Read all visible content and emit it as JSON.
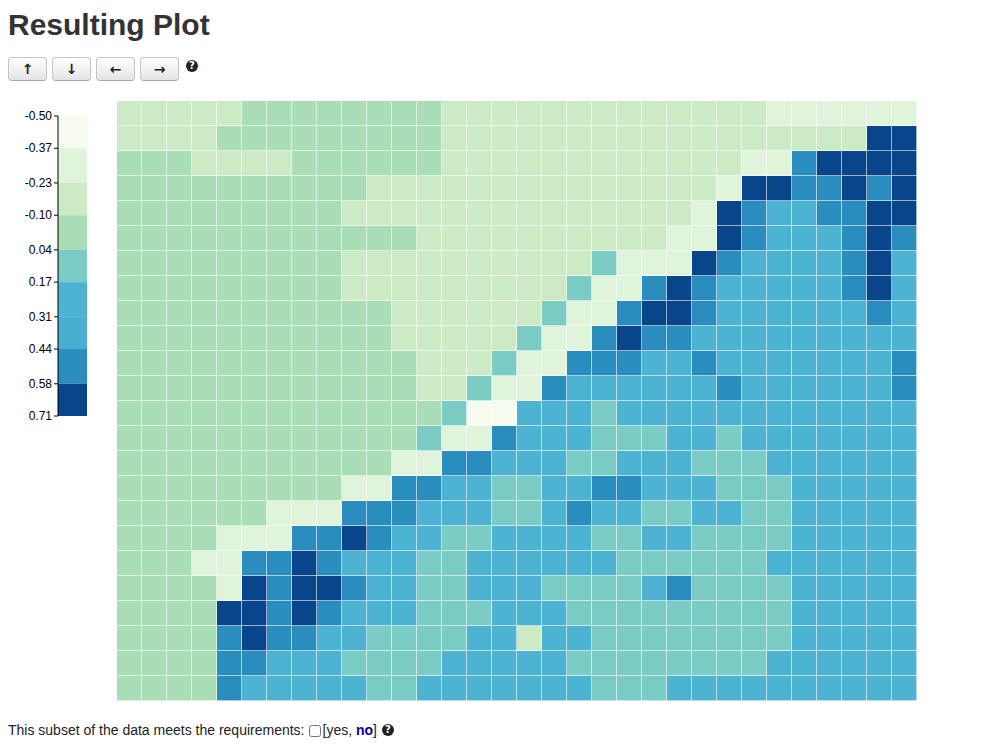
{
  "header": {
    "title": "Resulting Plot"
  },
  "buttons": [
    "↑",
    "↓",
    "←",
    "→"
  ],
  "help_icon": "?",
  "chart_data": {
    "type": "heatmap",
    "tick_labels": false,
    "colorbar": {
      "range": [
        -0.5,
        0.71
      ],
      "ticks": [
        {
          "value": -0.5,
          "label": "-0.50"
        },
        -0.37,
        -0.23,
        {
          "value": -0.1,
          "label": "-0.10"
        },
        0.04,
        0.17,
        0.31,
        0.44,
        0.58,
        0.71
      ],
      "colors": [
        "#f7fcf0",
        "#e0f3db",
        "#ccebc5",
        "#a8ddb5",
        "#7bccc4",
        "#4eb3d3",
        "#4aaed3",
        "#2b8cbe",
        "#08458a"
      ]
    },
    "z": [
      [
        -0.17,
        -0.17,
        -0.17,
        -0.17,
        -0.17,
        -0.05,
        -0.05,
        -0.05,
        -0.05,
        -0.05,
        -0.05,
        -0.05,
        -0.05,
        -0.17,
        -0.17,
        -0.17,
        -0.17,
        -0.17,
        -0.17,
        -0.17,
        -0.17,
        -0.17,
        -0.17,
        -0.17,
        -0.17,
        -0.17,
        -0.3,
        -0.3,
        -0.3,
        -0.3,
        -0.3,
        -0.3
      ],
      [
        -0.17,
        -0.17,
        -0.17,
        -0.17,
        -0.05,
        -0.05,
        -0.05,
        -0.05,
        -0.05,
        -0.05,
        -0.05,
        -0.05,
        -0.05,
        -0.17,
        -0.17,
        -0.17,
        -0.17,
        -0.17,
        -0.17,
        -0.17,
        -0.17,
        -0.17,
        -0.17,
        -0.17,
        -0.17,
        -0.17,
        -0.17,
        -0.17,
        -0.17,
        -0.17,
        0.65,
        0.65
      ],
      [
        -0.05,
        -0.05,
        -0.05,
        -0.17,
        -0.17,
        -0.17,
        -0.17,
        -0.05,
        -0.05,
        -0.05,
        -0.05,
        -0.05,
        -0.05,
        -0.17,
        -0.17,
        -0.17,
        -0.17,
        -0.17,
        -0.17,
        -0.17,
        -0.17,
        -0.17,
        -0.17,
        -0.17,
        -0.17,
        -0.3,
        -0.3,
        0.5,
        0.65,
        0.65,
        0.65,
        0.65
      ],
      [
        -0.05,
        -0.05,
        -0.05,
        -0.05,
        -0.05,
        -0.05,
        -0.05,
        -0.05,
        -0.05,
        -0.05,
        -0.17,
        -0.17,
        -0.17,
        -0.17,
        -0.17,
        -0.17,
        -0.17,
        -0.17,
        -0.17,
        -0.17,
        -0.17,
        -0.17,
        -0.17,
        -0.17,
        -0.3,
        0.65,
        0.65,
        0.5,
        0.5,
        0.65,
        0.5,
        0.65
      ],
      [
        -0.05,
        -0.05,
        -0.05,
        -0.05,
        -0.05,
        -0.05,
        -0.05,
        -0.05,
        -0.05,
        -0.17,
        -0.17,
        -0.17,
        -0.17,
        -0.17,
        -0.17,
        -0.17,
        -0.17,
        -0.17,
        -0.17,
        -0.17,
        -0.17,
        -0.17,
        -0.17,
        -0.3,
        0.65,
        0.5,
        0.3,
        0.3,
        0.5,
        0.5,
        0.65,
        0.65
      ],
      [
        -0.05,
        -0.05,
        -0.05,
        -0.05,
        -0.05,
        -0.05,
        -0.05,
        -0.05,
        -0.05,
        -0.05,
        -0.05,
        -0.05,
        -0.17,
        -0.17,
        -0.17,
        -0.17,
        -0.17,
        -0.17,
        -0.17,
        -0.17,
        -0.17,
        -0.17,
        -0.3,
        -0.3,
        0.65,
        0.5,
        0.3,
        0.3,
        0.3,
        0.5,
        0.65,
        0.5
      ],
      [
        -0.05,
        -0.05,
        -0.05,
        -0.05,
        -0.05,
        -0.05,
        -0.05,
        -0.05,
        -0.05,
        -0.17,
        -0.17,
        -0.17,
        -0.17,
        -0.17,
        -0.17,
        -0.17,
        -0.17,
        -0.17,
        -0.17,
        0.1,
        -0.3,
        -0.3,
        -0.3,
        0.65,
        0.5,
        0.3,
        0.3,
        0.3,
        0.3,
        0.5,
        0.65,
        0.3
      ],
      [
        -0.05,
        -0.05,
        -0.05,
        -0.05,
        -0.05,
        -0.05,
        -0.05,
        -0.05,
        -0.05,
        -0.17,
        -0.17,
        -0.17,
        -0.17,
        -0.17,
        -0.17,
        -0.17,
        -0.17,
        -0.17,
        0.1,
        -0.3,
        -0.3,
        0.5,
        0.65,
        0.5,
        0.3,
        0.3,
        0.3,
        0.3,
        0.3,
        0.5,
        0.65,
        0.3
      ],
      [
        -0.05,
        -0.05,
        -0.05,
        -0.05,
        -0.05,
        -0.05,
        -0.05,
        -0.05,
        -0.05,
        -0.05,
        -0.05,
        -0.17,
        -0.17,
        -0.17,
        -0.17,
        -0.17,
        -0.17,
        0.1,
        -0.3,
        -0.3,
        0.5,
        0.65,
        0.65,
        0.5,
        0.3,
        0.3,
        0.3,
        0.3,
        0.3,
        0.3,
        0.5,
        0.3
      ],
      [
        -0.05,
        -0.05,
        -0.05,
        -0.05,
        -0.05,
        -0.05,
        -0.05,
        -0.05,
        -0.05,
        -0.05,
        -0.05,
        -0.17,
        -0.17,
        -0.17,
        -0.17,
        -0.17,
        0.1,
        -0.3,
        -0.3,
        0.5,
        0.65,
        0.5,
        0.5,
        0.3,
        0.3,
        0.3,
        0.3,
        0.3,
        0.3,
        0.3,
        0.3,
        0.3
      ],
      [
        -0.05,
        -0.05,
        -0.05,
        -0.05,
        -0.05,
        -0.05,
        -0.05,
        -0.05,
        -0.05,
        -0.05,
        -0.05,
        -0.05,
        -0.17,
        -0.17,
        -0.17,
        0.1,
        -0.3,
        -0.3,
        0.5,
        0.5,
        0.5,
        0.3,
        0.3,
        0.5,
        0.3,
        0.3,
        0.3,
        0.3,
        0.3,
        0.3,
        0.3,
        0.5
      ],
      [
        -0.05,
        -0.05,
        -0.05,
        -0.05,
        -0.05,
        -0.05,
        -0.05,
        -0.05,
        -0.05,
        -0.05,
        -0.05,
        -0.05,
        -0.17,
        -0.17,
        0.1,
        -0.3,
        -0.3,
        0.5,
        0.3,
        0.3,
        0.3,
        0.3,
        0.3,
        0.3,
        0.5,
        0.3,
        0.3,
        0.3,
        0.3,
        0.3,
        0.3,
        0.5
      ],
      [
        -0.05,
        -0.05,
        -0.05,
        -0.05,
        -0.05,
        -0.05,
        -0.05,
        -0.05,
        -0.05,
        -0.05,
        -0.05,
        -0.05,
        -0.05,
        0.1,
        -0.45,
        -0.45,
        0.3,
        0.3,
        0.3,
        0.1,
        0.3,
        0.3,
        0.3,
        0.3,
        0.3,
        0.3,
        0.3,
        0.3,
        0.3,
        0.3,
        0.3,
        0.3
      ],
      [
        -0.05,
        -0.05,
        -0.05,
        -0.05,
        -0.05,
        -0.05,
        -0.05,
        -0.05,
        -0.05,
        -0.05,
        -0.05,
        -0.05,
        0.1,
        -0.3,
        -0.3,
        0.5,
        0.3,
        0.3,
        0.3,
        0.1,
        0.1,
        0.1,
        0.3,
        0.3,
        0.1,
        0.3,
        0.3,
        0.3,
        0.3,
        0.3,
        0.3,
        0.3
      ],
      [
        -0.05,
        -0.05,
        -0.05,
        -0.05,
        -0.05,
        -0.05,
        -0.05,
        -0.05,
        -0.05,
        -0.05,
        -0.05,
        -0.3,
        -0.3,
        0.5,
        0.5,
        0.3,
        0.3,
        0.3,
        0.1,
        0.1,
        0.3,
        0.3,
        0.3,
        0.1,
        0.1,
        0.1,
        0.3,
        0.3,
        0.3,
        0.3,
        0.3,
        0.3
      ],
      [
        -0.05,
        -0.05,
        -0.05,
        -0.05,
        -0.05,
        -0.05,
        -0.05,
        -0.05,
        -0.05,
        -0.3,
        -0.3,
        0.5,
        0.5,
        0.3,
        0.3,
        0.1,
        0.1,
        0.3,
        0.3,
        0.5,
        0.5,
        0.3,
        0.3,
        0.3,
        0.1,
        0.1,
        0.1,
        0.3,
        0.3,
        0.3,
        0.3,
        0.3
      ],
      [
        -0.05,
        -0.05,
        -0.05,
        -0.05,
        -0.05,
        -0.05,
        -0.3,
        -0.3,
        -0.3,
        0.5,
        0.5,
        0.5,
        0.3,
        0.3,
        0.3,
        0.1,
        0.1,
        0.3,
        0.5,
        0.3,
        0.3,
        0.1,
        0.1,
        0.3,
        0.3,
        0.1,
        0.1,
        0.3,
        0.3,
        0.3,
        0.3,
        0.3
      ],
      [
        -0.05,
        -0.05,
        -0.05,
        -0.05,
        -0.3,
        -0.3,
        -0.3,
        0.5,
        0.5,
        0.65,
        0.5,
        0.3,
        0.3,
        0.1,
        0.1,
        0.3,
        0.3,
        0.3,
        0.3,
        0.1,
        0.1,
        0.3,
        0.3,
        0.1,
        0.1,
        0.1,
        0.1,
        0.3,
        0.3,
        0.3,
        0.3,
        0.3
      ],
      [
        -0.05,
        -0.05,
        -0.05,
        -0.3,
        -0.3,
        0.5,
        0.5,
        0.65,
        0.5,
        0.3,
        0.3,
        0.3,
        0.1,
        0.1,
        0.3,
        0.3,
        0.3,
        0.3,
        0.3,
        0.3,
        0.1,
        0.1,
        0.1,
        0.1,
        0.1,
        0.1,
        0.3,
        0.3,
        0.3,
        0.3,
        0.3,
        0.3
      ],
      [
        -0.05,
        -0.05,
        -0.05,
        -0.05,
        -0.3,
        0.65,
        0.5,
        0.65,
        0.65,
        0.5,
        0.3,
        0.3,
        0.1,
        0.1,
        0.3,
        0.3,
        0.3,
        0.1,
        0.1,
        0.1,
        0.1,
        0.3,
        0.5,
        0.1,
        0.1,
        0.1,
        0.1,
        0.3,
        0.3,
        0.3,
        0.3,
        0.3
      ],
      [
        -0.05,
        -0.05,
        -0.05,
        -0.05,
        0.65,
        0.65,
        0.5,
        0.65,
        0.5,
        0.3,
        0.3,
        0.3,
        0.1,
        0.1,
        0.1,
        0.3,
        0.3,
        0.3,
        0.1,
        0.1,
        0.1,
        0.1,
        0.1,
        0.1,
        0.1,
        0.1,
        0.1,
        0.3,
        0.3,
        0.3,
        0.3,
        0.3
      ],
      [
        -0.05,
        -0.05,
        -0.05,
        -0.05,
        0.5,
        0.65,
        0.5,
        0.5,
        0.3,
        0.3,
        0.1,
        0.1,
        0.1,
        0.1,
        0.3,
        0.3,
        -0.17,
        0.3,
        0.3,
        0.1,
        0.1,
        0.1,
        0.1,
        0.1,
        0.1,
        0.1,
        0.1,
        0.3,
        0.3,
        0.3,
        0.3,
        0.3
      ],
      [
        -0.05,
        -0.05,
        -0.05,
        -0.05,
        0.5,
        0.5,
        0.3,
        0.3,
        0.3,
        0.1,
        0.1,
        0.1,
        0.1,
        0.3,
        0.3,
        0.3,
        0.3,
        0.3,
        0.1,
        0.1,
        0.1,
        0.1,
        0.1,
        0.1,
        0.1,
        0.1,
        0.3,
        0.3,
        0.3,
        0.3,
        0.3,
        0.3
      ],
      [
        -0.05,
        -0.05,
        -0.05,
        -0.05,
        0.5,
        0.3,
        0.3,
        0.3,
        0.3,
        0.3,
        0.1,
        0.1,
        0.3,
        0.3,
        0.3,
        0.3,
        0.3,
        0.3,
        0.3,
        0.1,
        0.1,
        0.1,
        0.3,
        0.3,
        0.3,
        0.3,
        0.3,
        0.3,
        0.3,
        0.3,
        0.3,
        0.3
      ]
    ]
  },
  "footer": {
    "label": "This subset of the data meets the requirements:",
    "before": "[yes, ",
    "link": "no",
    "after": "]"
  }
}
